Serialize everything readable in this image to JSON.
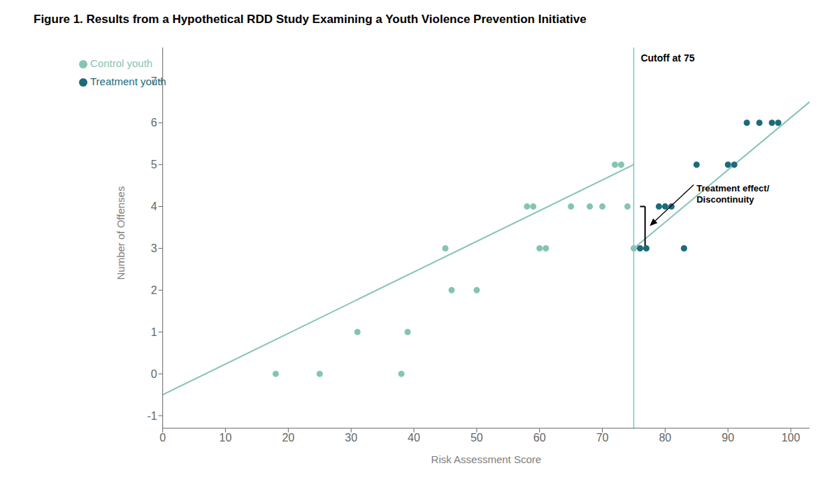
{
  "chart_data": {
    "type": "scatter",
    "title": "Figure 1. Results from a Hypothetical RDD Study Examining a Youth Violence Prevention Initiative",
    "xlabel": "Risk Assessment Score",
    "ylabel": "Number of Offenses",
    "xlim": [
      0,
      103
    ],
    "ylim": [
      -1.3,
      7.8
    ],
    "xticks": [
      0,
      10,
      20,
      30,
      40,
      50,
      60,
      70,
      80,
      90,
      100
    ],
    "yticks": [
      -1,
      0,
      1,
      2,
      3,
      4,
      5,
      6,
      7
    ],
    "grid": false,
    "legend": "upper left",
    "series": [
      {
        "name": "Control youth",
        "color": "#85C4B5",
        "x": [
          18,
          25,
          31,
          38,
          39,
          45,
          46,
          50,
          58,
          59,
          60,
          61,
          65,
          68,
          70,
          72,
          73,
          74,
          75
        ],
        "y": [
          0,
          0,
          1,
          0,
          1,
          3,
          2,
          2,
          4,
          4,
          3,
          3,
          4,
          4,
          4,
          5,
          5,
          4,
          3
        ]
      },
      {
        "name": "Treatment youth",
        "color": "#1C6B7A",
        "x": [
          76,
          77,
          79,
          80,
          81,
          83,
          85,
          90,
          91,
          93,
          95,
          97,
          98
        ],
        "y": [
          3,
          3,
          4,
          4,
          4,
          3,
          5,
          5,
          5,
          6,
          6,
          6,
          6
        ]
      }
    ],
    "fit_lines": [
      {
        "color": "#85C4B5",
        "x": [
          0,
          75
        ],
        "y": [
          -0.5,
          5.0
        ]
      },
      {
        "color": "#85C4B5",
        "x": [
          75,
          103
        ],
        "y": [
          3.0,
          6.5
        ]
      }
    ],
    "cutoff": {
      "x": 75,
      "label": "Cutoff at 75",
      "color": "#7FBFCF"
    },
    "bracket": {
      "x": 76.8,
      "y_low": 3.0,
      "y_high": 4.0
    },
    "annotations": [
      {
        "text": "Treatment effect/\nDiscontinuity",
        "x": 77.2,
        "y": 3.5
      }
    ]
  }
}
